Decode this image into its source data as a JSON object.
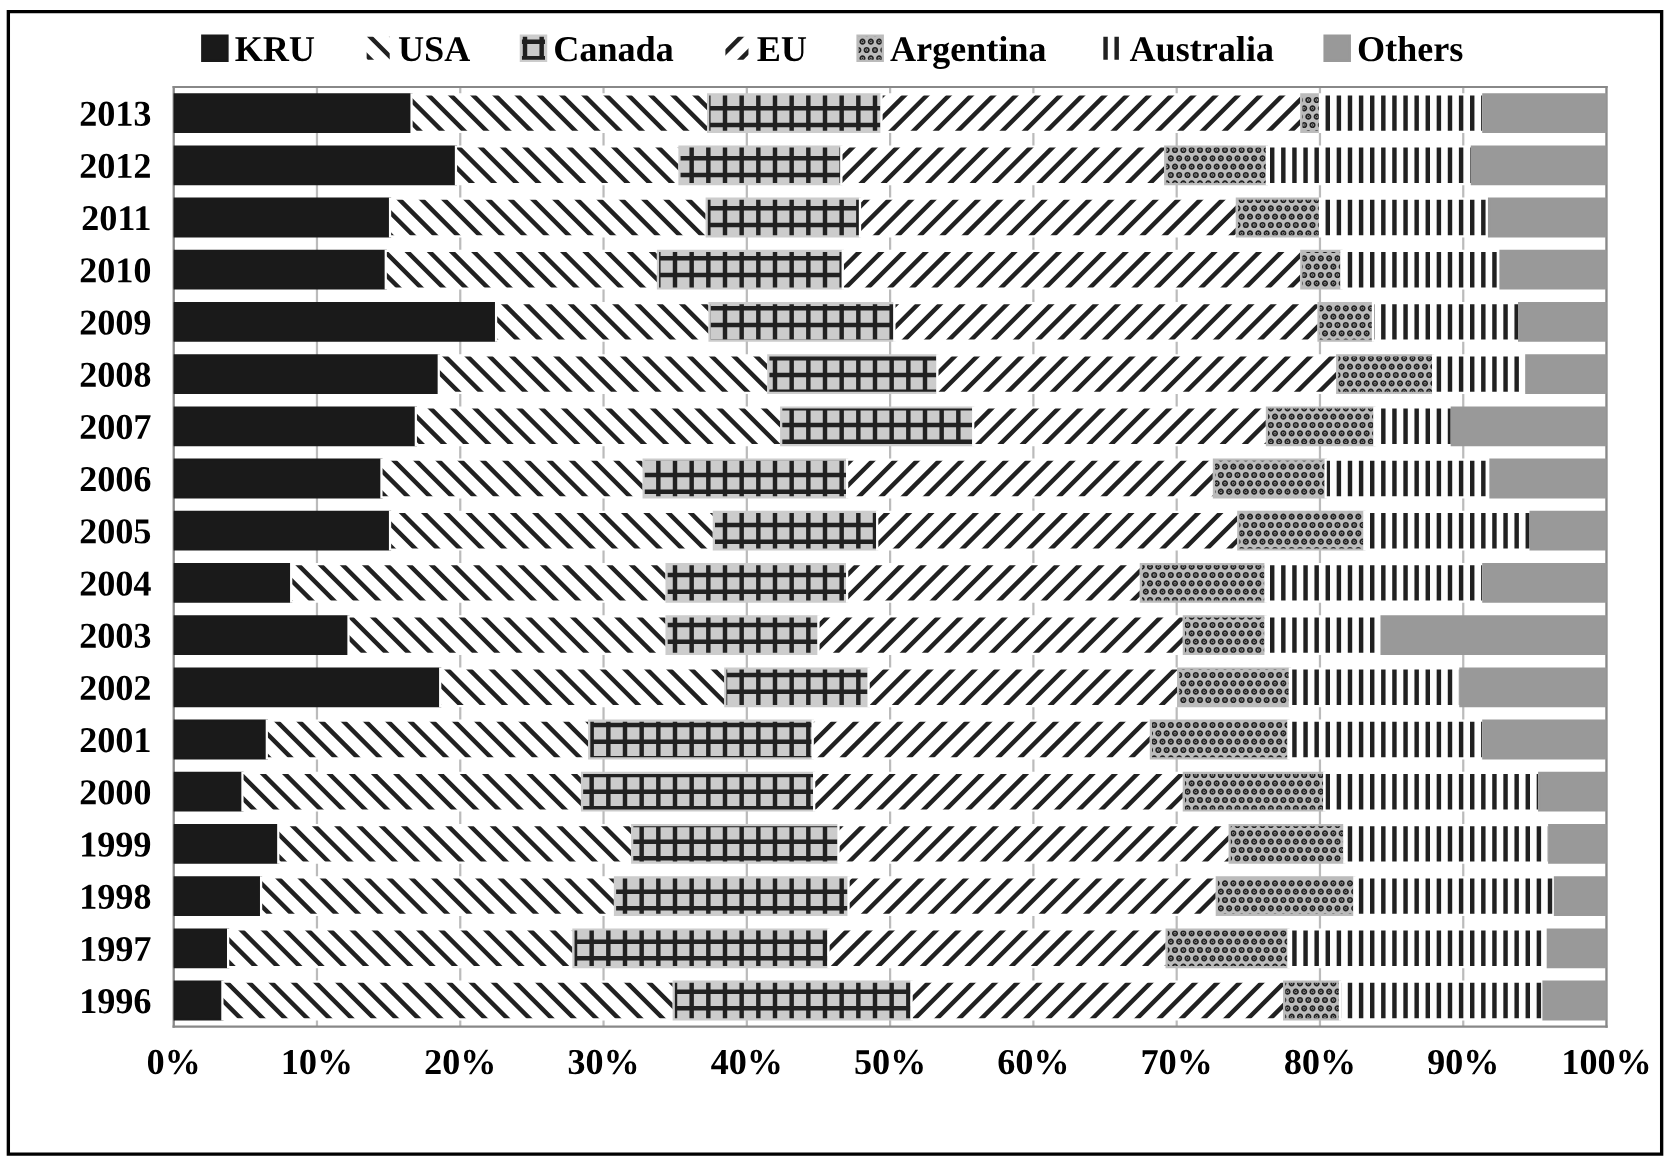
{
  "chart_data": {
    "type": "bar",
    "orientation": "horizontal",
    "stacked": true,
    "categories": [
      "2013",
      "2012",
      "2011",
      "2010",
      "2009",
      "2008",
      "2007",
      "2006",
      "2005",
      "2004",
      "2003",
      "2002",
      "2001",
      "2000",
      "1999",
      "1998",
      "1997",
      "1996"
    ],
    "series": [
      {
        "name": "KRU",
        "color": "#1a1a1a",
        "values": [
          16.6,
          19.7,
          15.1,
          14.8,
          22.5,
          18.5,
          16.9,
          14.5,
          15.1,
          8.2,
          12.2,
          18.6,
          6.5,
          4.8,
          7.3,
          6.1,
          3.8,
          3.4
        ]
      },
      {
        "name": "USA",
        "color": "#ffffff",
        "values": [
          20.7,
          15.6,
          22.1,
          19.0,
          14.9,
          23.0,
          25.5,
          18.3,
          22.6,
          26.2,
          22.2,
          19.9,
          22.5,
          23.7,
          24.7,
          24.7,
          24.1,
          31.5
        ]
      },
      {
        "name": "Canada",
        "color": "#cccccc",
        "values": [
          12.1,
          11.3,
          10.7,
          12.9,
          12.9,
          11.8,
          13.4,
          14.2,
          11.4,
          12.6,
          10.6,
          10.0,
          15.6,
          16.2,
          14.4,
          16.3,
          17.8,
          16.6
        ]
      },
      {
        "name": "EU",
        "color": "#ffffff",
        "values": [
          29.3,
          22.6,
          26.3,
          32.0,
          29.6,
          27.9,
          20.5,
          25.6,
          25.2,
          20.5,
          25.5,
          21.6,
          23.6,
          25.8,
          27.3,
          25.7,
          23.6,
          26.0
        ]
      },
      {
        "name": "Argentina",
        "color": "#bbbbbb",
        "values": [
          1.3,
          7.1,
          5.8,
          2.8,
          3.8,
          6.7,
          7.5,
          7.8,
          8.8,
          8.7,
          5.7,
          7.8,
          9.6,
          9.8,
          8.0,
          9.6,
          8.5,
          3.9
        ]
      },
      {
        "name": "Australia",
        "color": "#ffffff",
        "values": [
          11.4,
          14.3,
          11.8,
          11.1,
          10.2,
          6.5,
          5.4,
          11.5,
          11.6,
          15.2,
          8.1,
          11.9,
          13.6,
          15.0,
          14.3,
          14.0,
          18.1,
          14.2
        ]
      },
      {
        "name": "Others",
        "color": "#999999",
        "values": [
          8.6,
          9.4,
          8.2,
          7.4,
          6.1,
          5.6,
          10.8,
          8.1,
          5.3,
          8.6,
          15.7,
          10.2,
          8.6,
          4.7,
          4.0,
          3.6,
          4.1,
          4.4
        ]
      }
    ],
    "xlim": [
      0,
      100
    ],
    "xticks": [
      {
        "value": 0,
        "label": "0%"
      },
      {
        "value": 10,
        "label": "10%"
      },
      {
        "value": 20,
        "label": "20%"
      },
      {
        "value": 30,
        "label": "30%"
      },
      {
        "value": 40,
        "label": "40%"
      },
      {
        "value": 50,
        "label": "50%"
      },
      {
        "value": 60,
        "label": "60%"
      },
      {
        "value": 70,
        "label": "70%"
      },
      {
        "value": 80,
        "label": "80%"
      },
      {
        "value": 90,
        "label": "90%"
      },
      {
        "value": 100,
        "label": "100%"
      }
    ],
    "grid": "x",
    "legend": "top"
  }
}
